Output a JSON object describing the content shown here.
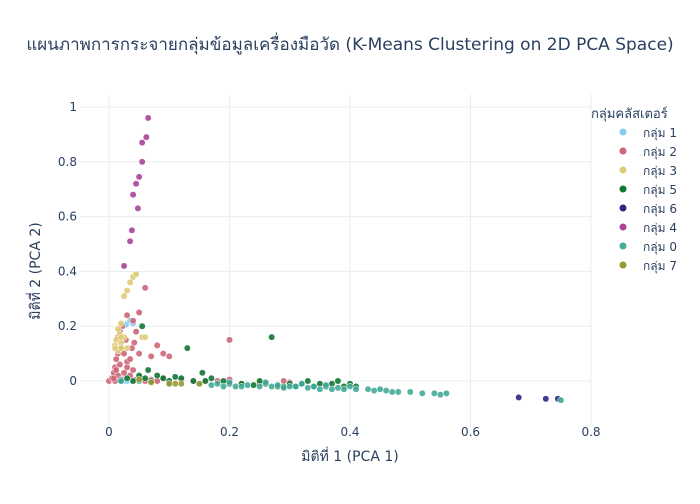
{
  "chart_data": {
    "type": "scatter",
    "title": "แผนภาพการกระจายกลุ่มข้อมูลเครื่องมือวัด (K-Means Clustering on 2D PCA Space)",
    "xlabel": "มิติที่ 1 (PCA 1)",
    "ylabel": "มิติที่ 2 (PCA 2)",
    "xlim": [
      -0.04,
      0.8
    ],
    "ylim": [
      -0.14,
      1.02
    ],
    "x_ticks": [
      "0",
      "0.2",
      "0.4",
      "0.6",
      "0.8"
    ],
    "y_ticks": [
      "0",
      "0.2",
      "0.4",
      "0.6",
      "0.8",
      "1"
    ],
    "grid": true,
    "legend": {
      "title": "กลุ่มคลัสเตอร์",
      "placement": "right"
    },
    "series": [
      {
        "name": "กลุ่ม 1",
        "color": "#88ccee",
        "points": [
          [
            0.03,
            0.21
          ],
          [
            0.035,
            0.22
          ],
          [
            0.04,
            0.21
          ],
          [
            0.02,
            0.01
          ],
          [
            0.025,
            0.0
          ],
          [
            0.03,
            0.0
          ],
          [
            0.035,
            0.01
          ],
          [
            0.04,
            0.0
          ],
          [
            0.045,
            0.005
          ],
          [
            0.03,
            0.015
          ],
          [
            0.02,
            0.0
          ],
          [
            0.05,
            0.0
          ],
          [
            0.028,
            0.205
          ],
          [
            0.015,
            0.005
          ]
        ]
      },
      {
        "name": "กลุ่ม 2",
        "color": "#cc6677",
        "points": [
          [
            0.0,
            0.0
          ],
          [
            0.005,
            0.01
          ],
          [
            0.008,
            0.03
          ],
          [
            0.01,
            0.05
          ],
          [
            0.012,
            0.08
          ],
          [
            0.015,
            0.1
          ],
          [
            0.02,
            0.12
          ],
          [
            0.015,
            0.16
          ],
          [
            0.018,
            0.18
          ],
          [
            0.022,
            0.2
          ],
          [
            0.028,
            0.15
          ],
          [
            0.03,
            0.07
          ],
          [
            0.035,
            0.02
          ],
          [
            0.04,
            0.04
          ],
          [
            0.045,
            0.18
          ],
          [
            0.05,
            0.25
          ],
          [
            0.03,
            0.24
          ],
          [
            0.04,
            0.22
          ],
          [
            0.05,
            0.1
          ],
          [
            0.06,
            0.34
          ],
          [
            0.07,
            0.09
          ],
          [
            0.08,
            0.13
          ],
          [
            0.09,
            0.1
          ],
          [
            0.1,
            0.09
          ],
          [
            0.2,
            0.15
          ],
          [
            0.045,
            0.005
          ],
          [
            0.05,
            0.01
          ],
          [
            0.06,
            0.0
          ],
          [
            0.07,
            0.005
          ],
          [
            0.08,
            0.0
          ],
          [
            0.09,
            0.01
          ],
          [
            0.1,
            0.0
          ],
          [
            0.12,
            0.005
          ],
          [
            0.14,
            0.0
          ],
          [
            0.16,
            0.0
          ],
          [
            0.18,
            0.0
          ],
          [
            0.2,
            0.005
          ],
          [
            0.22,
            -0.01
          ],
          [
            0.25,
            -0.01
          ],
          [
            0.3,
            -0.005
          ],
          [
            0.29,
            0.0
          ],
          [
            0.01,
            0.0
          ],
          [
            0.015,
            0.02
          ],
          [
            0.02,
            0.005
          ],
          [
            0.025,
            0.03
          ],
          [
            0.03,
            0.05
          ],
          [
            0.035,
            0.08
          ],
          [
            0.038,
            0.12
          ],
          [
            0.042,
            0.14
          ],
          [
            0.025,
            0.1
          ],
          [
            0.018,
            0.06
          ],
          [
            0.012,
            0.04
          ],
          [
            0.008,
            0.01
          ]
        ]
      },
      {
        "name": "กลุ่ม 3",
        "color": "#ddcc77",
        "points": [
          [
            0.04,
            0.38
          ],
          [
            0.045,
            0.39
          ],
          [
            0.035,
            0.36
          ],
          [
            0.03,
            0.33
          ],
          [
            0.025,
            0.31
          ],
          [
            0.02,
            0.21
          ],
          [
            0.015,
            0.19
          ],
          [
            0.018,
            0.17
          ],
          [
            0.012,
            0.15
          ],
          [
            0.01,
            0.13
          ],
          [
            0.015,
            0.11
          ],
          [
            0.02,
            0.14
          ],
          [
            0.025,
            0.16
          ],
          [
            0.055,
            0.16
          ],
          [
            0.06,
            0.16
          ],
          [
            0.01,
            0.12
          ],
          [
            0.02,
            0.12
          ],
          [
            0.03,
            0.12
          ],
          [
            0.02,
            0.16
          ]
        ]
      },
      {
        "name": "กลุ่ม 5",
        "color": "#117733",
        "points": [
          [
            0.055,
            0.2
          ],
          [
            0.13,
            0.12
          ],
          [
            0.27,
            0.16
          ],
          [
            0.155,
            0.03
          ],
          [
            0.02,
            0.0
          ],
          [
            0.03,
            0.01
          ],
          [
            0.04,
            0.0
          ],
          [
            0.05,
            0.02
          ],
          [
            0.06,
            0.01
          ],
          [
            0.065,
            0.04
          ],
          [
            0.07,
            0.0
          ],
          [
            0.08,
            0.02
          ],
          [
            0.09,
            0.01
          ],
          [
            0.1,
            0.0
          ],
          [
            0.11,
            0.015
          ],
          [
            0.12,
            0.01
          ],
          [
            0.14,
            0.0
          ],
          [
            0.16,
            0.0
          ],
          [
            0.17,
            0.01
          ],
          [
            0.19,
            0.0
          ],
          [
            0.2,
            -0.01
          ],
          [
            0.22,
            -0.01
          ],
          [
            0.24,
            -0.015
          ],
          [
            0.25,
            0.0
          ],
          [
            0.26,
            -0.01
          ],
          [
            0.28,
            -0.02
          ],
          [
            0.29,
            -0.02
          ],
          [
            0.3,
            -0.01
          ],
          [
            0.31,
            -0.02
          ],
          [
            0.32,
            -0.01
          ],
          [
            0.33,
            0.0
          ],
          [
            0.34,
            -0.02
          ],
          [
            0.35,
            -0.01
          ],
          [
            0.36,
            -0.02
          ],
          [
            0.37,
            -0.01
          ],
          [
            0.38,
            0.0
          ],
          [
            0.39,
            -0.02
          ],
          [
            0.4,
            -0.01
          ],
          [
            0.41,
            -0.02
          ]
        ]
      },
      {
        "name": "กลุ่ม 6",
        "color": "#332288",
        "points": [
          [
            0.68,
            -0.06
          ],
          [
            0.725,
            -0.065
          ],
          [
            0.745,
            -0.065
          ]
        ]
      },
      {
        "name": "กลุ่ม 4",
        "color": "#aa4499",
        "points": [
          [
            0.065,
            0.96
          ],
          [
            0.062,
            0.89
          ],
          [
            0.055,
            0.87
          ],
          [
            0.055,
            0.8
          ],
          [
            0.05,
            0.745
          ],
          [
            0.045,
            0.72
          ],
          [
            0.04,
            0.68
          ],
          [
            0.048,
            0.63
          ],
          [
            0.038,
            0.55
          ],
          [
            0.035,
            0.51
          ],
          [
            0.025,
            0.42
          ]
        ]
      },
      {
        "name": "กลุ่ม 0",
        "color": "#44aa99",
        "points": [
          [
            0.02,
            0.0
          ],
          [
            0.05,
            0.0
          ],
          [
            0.1,
            -0.01
          ],
          [
            0.15,
            -0.01
          ],
          [
            0.17,
            -0.015
          ],
          [
            0.19,
            -0.02
          ],
          [
            0.21,
            -0.02
          ],
          [
            0.23,
            -0.015
          ],
          [
            0.25,
            -0.02
          ],
          [
            0.27,
            -0.02
          ],
          [
            0.29,
            -0.025
          ],
          [
            0.31,
            -0.02
          ],
          [
            0.33,
            -0.025
          ],
          [
            0.35,
            -0.03
          ],
          [
            0.37,
            -0.03
          ],
          [
            0.38,
            -0.025
          ],
          [
            0.39,
            -0.03
          ],
          [
            0.41,
            -0.03
          ],
          [
            0.43,
            -0.03
          ],
          [
            0.44,
            -0.035
          ],
          [
            0.46,
            -0.035
          ],
          [
            0.47,
            -0.04
          ],
          [
            0.48,
            -0.04
          ],
          [
            0.5,
            -0.04
          ],
          [
            0.52,
            -0.045
          ],
          [
            0.54,
            -0.045
          ],
          [
            0.55,
            -0.05
          ],
          [
            0.56,
            -0.045
          ],
          [
            0.2,
            -0.005
          ],
          [
            0.26,
            -0.005
          ],
          [
            0.32,
            -0.01
          ],
          [
            0.36,
            -0.015
          ],
          [
            0.4,
            -0.02
          ],
          [
            0.45,
            -0.03
          ],
          [
            0.22,
            -0.02
          ],
          [
            0.3,
            -0.02
          ],
          [
            0.75,
            -0.07
          ],
          [
            0.18,
            -0.01
          ],
          [
            0.28,
            -0.015
          ],
          [
            0.34,
            -0.02
          ]
        ]
      },
      {
        "name": "กลุ่ม 7",
        "color": "#999933",
        "points": [
          [
            0.1,
            -0.01
          ],
          [
            0.11,
            -0.01
          ],
          [
            0.12,
            -0.01
          ],
          [
            0.15,
            -0.01
          ],
          [
            0.05,
            0.005
          ],
          [
            0.07,
            -0.005
          ]
        ]
      }
    ]
  }
}
